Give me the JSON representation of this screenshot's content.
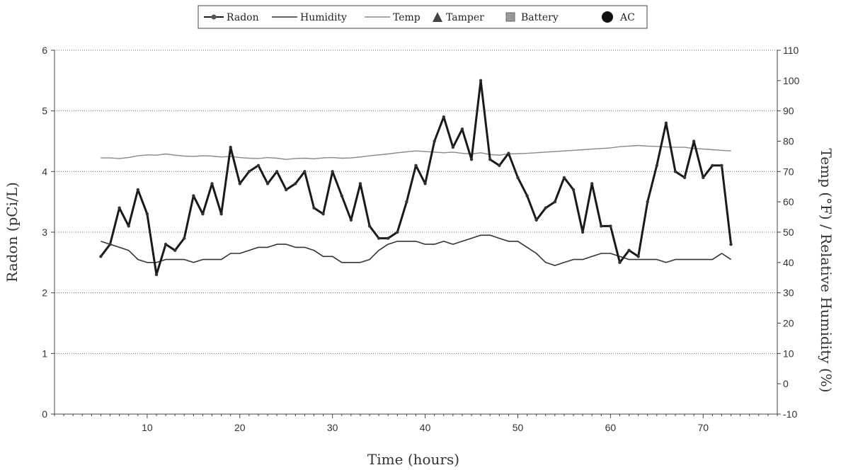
{
  "chart_data": {
    "type": "line",
    "xlabel": "Time (hours)",
    "ylabel": "Radon (pCi/L)",
    "y2label": "Temp (°F) / Relative Humidity (%)",
    "xlim": [
      0,
      78
    ],
    "ylim": [
      0,
      6
    ],
    "y2lim": [
      -10,
      110
    ],
    "xticks": [
      10,
      20,
      30,
      40,
      50,
      60,
      70
    ],
    "yticks": [
      0,
      1,
      2,
      3,
      4,
      5,
      6
    ],
    "y2ticks": [
      -10,
      0,
      10,
      20,
      30,
      40,
      50,
      60,
      70,
      80,
      90,
      100,
      110
    ],
    "grid": "horizontal dotted",
    "legend_position": "top-center",
    "legend": [
      "Radon",
      "Humidity",
      "Temp",
      "Tamper",
      "Battery",
      "AC"
    ],
    "series": [
      {
        "name": "Radon",
        "axis": "left",
        "color": "#1a1a1a",
        "x": [
          5,
          6,
          7,
          8,
          9,
          10,
          11,
          12,
          13,
          14,
          15,
          16,
          17,
          18,
          19,
          20,
          21,
          22,
          23,
          24,
          25,
          26,
          27,
          28,
          29,
          30,
          31,
          32,
          33,
          34,
          35,
          36,
          37,
          38,
          39,
          40,
          41,
          42,
          43,
          44,
          45,
          46,
          47,
          48,
          49,
          50,
          51,
          52,
          53,
          54,
          55,
          56,
          57,
          58,
          59,
          60,
          61,
          62,
          63,
          64,
          65,
          66,
          67,
          68,
          69,
          70,
          71,
          72,
          73
        ],
        "values": [
          2.6,
          2.8,
          3.4,
          3.1,
          3.7,
          3.3,
          2.3,
          2.8,
          2.7,
          2.9,
          3.6,
          3.3,
          3.8,
          3.3,
          4.4,
          3.8,
          4.0,
          4.1,
          3.8,
          4.0,
          3.7,
          3.8,
          4.0,
          3.4,
          3.3,
          4.0,
          3.6,
          3.2,
          3.8,
          3.1,
          2.9,
          2.9,
          3.0,
          3.5,
          4.1,
          3.8,
          4.5,
          4.9,
          4.4,
          4.7,
          4.2,
          5.5,
          4.2,
          4.1,
          4.3,
          3.9,
          3.6,
          3.2,
          3.4,
          3.5,
          3.9,
          3.7,
          3.0,
          3.8,
          3.1,
          3.1,
          2.5,
          2.7,
          2.6,
          3.5,
          4.1,
          4.8,
          4.0,
          3.9,
          4.5,
          3.9,
          4.1,
          4.1,
          2.8
        ]
      },
      {
        "name": "Humidity",
        "axis": "right",
        "color": "#333333",
        "x": [
          5,
          6,
          7,
          8,
          9,
          10,
          11,
          12,
          13,
          14,
          15,
          16,
          17,
          18,
          19,
          20,
          21,
          22,
          23,
          24,
          25,
          26,
          27,
          28,
          29,
          30,
          31,
          32,
          33,
          34,
          35,
          36,
          37,
          38,
          39,
          40,
          41,
          42,
          43,
          44,
          45,
          46,
          47,
          48,
          49,
          50,
          51,
          52,
          53,
          54,
          55,
          56,
          57,
          58,
          59,
          60,
          61,
          62,
          63,
          64,
          65,
          66,
          67,
          68,
          69,
          70,
          71,
          72,
          73
        ],
        "values": [
          47,
          46,
          45,
          44,
          41,
          40,
          40,
          41,
          41,
          41,
          40,
          41,
          41,
          41,
          43,
          43,
          44,
          45,
          45,
          46,
          46,
          45,
          45,
          44,
          42,
          42,
          40,
          40,
          40,
          41,
          44,
          46,
          47,
          47,
          47,
          46,
          46,
          47,
          46,
          47,
          48,
          49,
          49,
          48,
          47,
          47,
          45,
          43,
          40,
          39,
          40,
          41,
          41,
          42,
          43,
          43,
          42,
          41,
          41,
          41,
          41,
          40,
          41,
          41,
          41,
          41,
          41,
          43,
          41
        ]
      },
      {
        "name": "Temp",
        "axis": "right",
        "color": "#888888",
        "x": [
          5,
          6,
          7,
          8,
          9,
          10,
          11,
          12,
          13,
          14,
          15,
          16,
          17,
          18,
          19,
          20,
          21,
          22,
          23,
          24,
          25,
          26,
          27,
          28,
          29,
          30,
          31,
          32,
          33,
          34,
          35,
          36,
          37,
          38,
          39,
          40,
          41,
          42,
          43,
          44,
          45,
          46,
          47,
          48,
          49,
          50,
          51,
          52,
          53,
          54,
          55,
          56,
          57,
          58,
          59,
          60,
          61,
          62,
          63,
          64,
          65,
          66,
          67,
          68,
          69,
          70,
          71,
          72,
          73
        ],
        "values": [
          74.5,
          74.5,
          74.3,
          74.6,
          75.2,
          75.5,
          75.4,
          75.8,
          75.4,
          75.1,
          75.0,
          75.2,
          75.1,
          74.8,
          75.0,
          74.6,
          74.4,
          74.3,
          74.6,
          74.4,
          74.0,
          74.3,
          74.4,
          74.2,
          74.5,
          74.6,
          74.4,
          74.5,
          74.8,
          75.2,
          75.5,
          75.8,
          76.2,
          76.5,
          76.8,
          76.6,
          76.4,
          76.2,
          76.4,
          76.0,
          75.8,
          76.2,
          75.6,
          75.4,
          75.8,
          75.9,
          76.0,
          76.2,
          76.4,
          76.6,
          76.8,
          77.0,
          77.2,
          77.4,
          77.6,
          77.8,
          78.2,
          78.4,
          78.6,
          78.4,
          78.3,
          78.1,
          78.0,
          78.0,
          77.6,
          77.4,
          77.2,
          77.0,
          76.8
        ]
      }
    ]
  }
}
